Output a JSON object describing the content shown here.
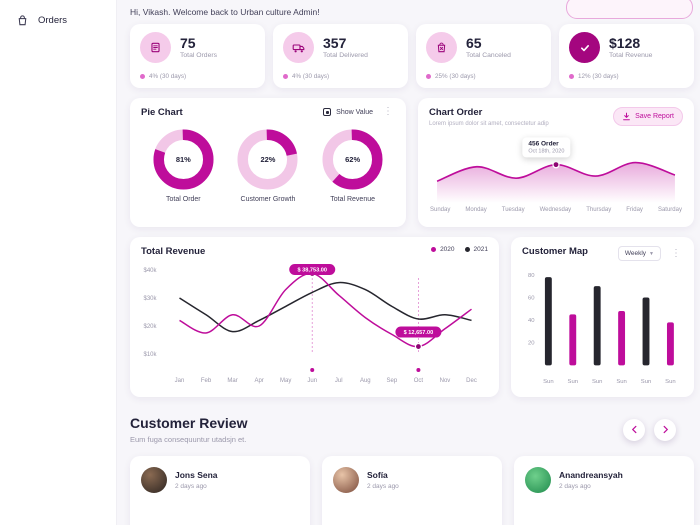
{
  "colors": {
    "accent": "#BE0D9B",
    "accent_dark": "#8F0574",
    "pink_light": "#F2C7E7",
    "dark": "#26262E"
  },
  "sidebar": {
    "items": [
      {
        "label": "Orders"
      }
    ]
  },
  "header": {
    "welcome": "Hi, Vikash. Welcome back to Urban culture Admin!"
  },
  "stats": [
    {
      "value": "75",
      "label": "Total Orders",
      "change": "4% (30 days)"
    },
    {
      "value": "357",
      "label": "Total Delivered",
      "change": "4% (30 days)"
    },
    {
      "value": "65",
      "label": "Total Canceled",
      "change": "25% (30 days)"
    },
    {
      "value": "$128",
      "label": "Total Revenue",
      "change": "12% (30 days)"
    }
  ],
  "pie_card": {
    "title": "Pie Chart",
    "show_value_label": "Show Value"
  },
  "order_card": {
    "title": "Chart Order",
    "subtitle": "Lorem ipsum dolor sit amet, consectetur adip",
    "save_report_label": "Save Report"
  },
  "revenue_card": {
    "title": "Total Revenue",
    "legend": [
      {
        "label": "2020",
        "color": "#BE0D9B"
      },
      {
        "label": "2021",
        "color": "#26262E"
      }
    ]
  },
  "map_card": {
    "title": "Customer Map",
    "dropdown_value": "Weekly"
  },
  "review": {
    "title": "Customer Review",
    "subtitle": "Eum fuga consequuntur utadsjn et.",
    "cards": [
      {
        "name": "Jons Sena",
        "time": "2 days ago"
      },
      {
        "name": "Sofía",
        "time": "2 days ago"
      },
      {
        "name": "Anandreansyah",
        "time": "2 days ago"
      }
    ]
  },
  "chart_data": [
    {
      "id": "donuts",
      "type": "pie",
      "items": [
        {
          "label": "Total Order",
          "value": 81
        },
        {
          "label": "Customer Growth",
          "value": 22
        },
        {
          "label": "Total Revenue",
          "value": 62
        }
      ]
    },
    {
      "id": "order",
      "type": "area",
      "title": "Chart Order",
      "x": [
        "Sunday",
        "Monday",
        "Tuesday",
        "Wednesday",
        "Thursday",
        "Friday",
        "Saturday"
      ],
      "values": [
        30,
        58,
        36,
        62,
        40,
        66,
        42
      ],
      "ylim": [
        0,
        80
      ],
      "highlight_index": 3,
      "annotation": {
        "value": "456 Order",
        "date": "Oct 18th, 2020"
      }
    },
    {
      "id": "revenue",
      "type": "line",
      "title": "Total Revenue",
      "x": [
        "Jan",
        "Feb",
        "Mar",
        "Apr",
        "May",
        "Jun",
        "Jul",
        "Aug",
        "Sep",
        "Oct",
        "Nov",
        "Dec"
      ],
      "ylim_thousands": [
        10,
        40
      ],
      "yticks": [
        "$40k",
        "$30k",
        "$20k",
        "$10k"
      ],
      "legend_position": "top-right",
      "series": [
        {
          "name": "2020",
          "color": "#BE0D9B",
          "values_thousands": [
            22,
            17.5,
            24,
            20,
            33,
            38.753,
            31,
            23,
            17,
            12.657,
            19,
            26
          ],
          "highlights": [
            {
              "index": 5,
              "label": "$ 38,753.00"
            },
            {
              "index": 9,
              "label": "$ 12,657.00"
            }
          ]
        },
        {
          "name": "2021",
          "color": "#26262E",
          "values_thousands": [
            30,
            24,
            18,
            22,
            27,
            32,
            35.5,
            33,
            27,
            22.5,
            24,
            22
          ]
        }
      ]
    },
    {
      "id": "map",
      "type": "bar",
      "title": "Customer Map",
      "categories": [
        "Sun",
        "Sun",
        "Sun",
        "Sun",
        "Sun",
        "Sun"
      ],
      "values": [
        78,
        45,
        70,
        48,
        60,
        38
      ],
      "bar_colors": [
        "#26262E",
        "#BE0D9B",
        "#26262E",
        "#BE0D9B",
        "#26262E",
        "#BE0D9B"
      ],
      "yticks": [
        80,
        60,
        40,
        20
      ],
      "ylim": [
        0,
        80
      ]
    }
  ]
}
